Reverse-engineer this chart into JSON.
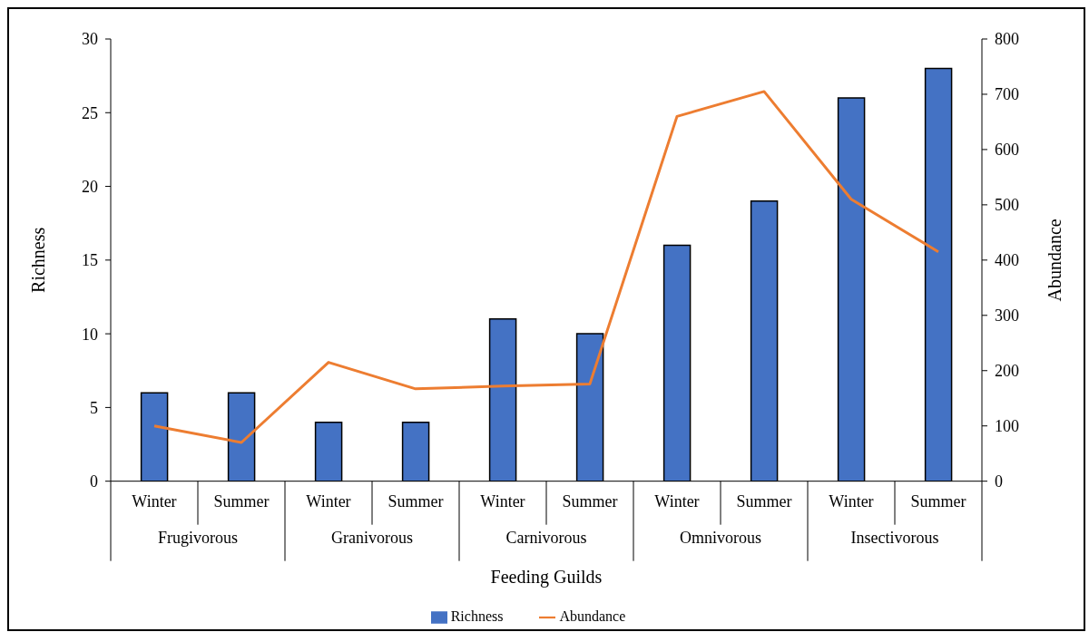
{
  "chart_data": {
    "type": "bar",
    "categories": [
      "Winter",
      "Summer",
      "Winter",
      "Summer",
      "Winter",
      "Summer",
      "Winter",
      "Summer",
      "Winter",
      "Summer"
    ],
    "annotations": [
      "Frugivorous",
      "Granivorous",
      "Carnivorous",
      "Omnivorous",
      "Insectivorous"
    ],
    "xlabel": "Feeding Guilds",
    "ylabel": "Richness",
    "y2label": "Abundance",
    "series": [
      {
        "name": "Richness",
        "color": "#4472c4",
        "values": [
          6,
          6,
          4,
          4,
          11,
          10,
          16,
          19,
          26,
          28
        ]
      },
      {
        "name": "Abundance",
        "type": "line",
        "axis": "y2",
        "color": "#ed7d31",
        "values": [
          100,
          70,
          215,
          167,
          172,
          176,
          660,
          705,
          510,
          415
        ]
      }
    ],
    "ylim": [
      0,
      30
    ],
    "yticks": [
      0,
      5,
      10,
      15,
      20,
      25,
      30
    ],
    "y2lim": [
      0,
      800
    ],
    "y2ticks": [
      0,
      100,
      200,
      300,
      400,
      500,
      600,
      700,
      800
    ],
    "grid": false,
    "legend": "bottom",
    "marker": "none",
    "line_style": "solid"
  }
}
